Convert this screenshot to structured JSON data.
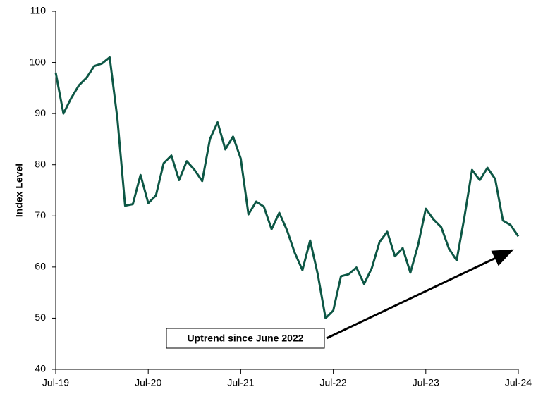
{
  "chart_data": {
    "type": "line",
    "y_label": "Index Level",
    "categories": [
      "Jul-19",
      null,
      null,
      null,
      null,
      null,
      null,
      null,
      null,
      null,
      null,
      null,
      "Jul-20",
      null,
      null,
      null,
      null,
      null,
      null,
      null,
      null,
      null,
      null,
      null,
      "Jul-21",
      null,
      null,
      null,
      null,
      null,
      null,
      null,
      null,
      null,
      null,
      null,
      "Jul-22",
      null,
      null,
      null,
      null,
      null,
      null,
      null,
      null,
      null,
      null,
      null,
      "Jul-23",
      null,
      null,
      null,
      null,
      null,
      null,
      null,
      null,
      null,
      null,
      null,
      "Jul-24"
    ],
    "values": [
      98,
      90,
      93,
      95.5,
      97,
      99.3,
      99.8,
      101,
      89,
      72,
      72.3,
      78,
      72.5,
      74,
      80.3,
      81.8,
      77,
      80.7,
      79,
      76.8,
      85,
      88.3,
      83,
      85.5,
      81.2,
      70.3,
      72.8,
      71.8,
      67.4,
      70.6,
      67.2,
      62.8,
      59.4,
      65.2,
      58.5,
      50,
      51.5,
      58.2,
      58.6,
      59.9,
      56.7,
      59.8,
      64.9,
      66.9,
      62.1,
      63.7,
      58.9,
      64.3,
      71.4,
      69.3,
      67.8,
      63.6,
      61.3,
      69.7,
      79,
      77,
      79.4,
      77.2,
      69.1,
      68.2,
      66
    ],
    "color": "#0d5745",
    "ylim": [
      40,
      110
    ],
    "yticks": [
      40,
      50,
      60,
      70,
      80,
      90,
      100,
      110
    ],
    "annotation": "Uptrend since June 2022"
  }
}
